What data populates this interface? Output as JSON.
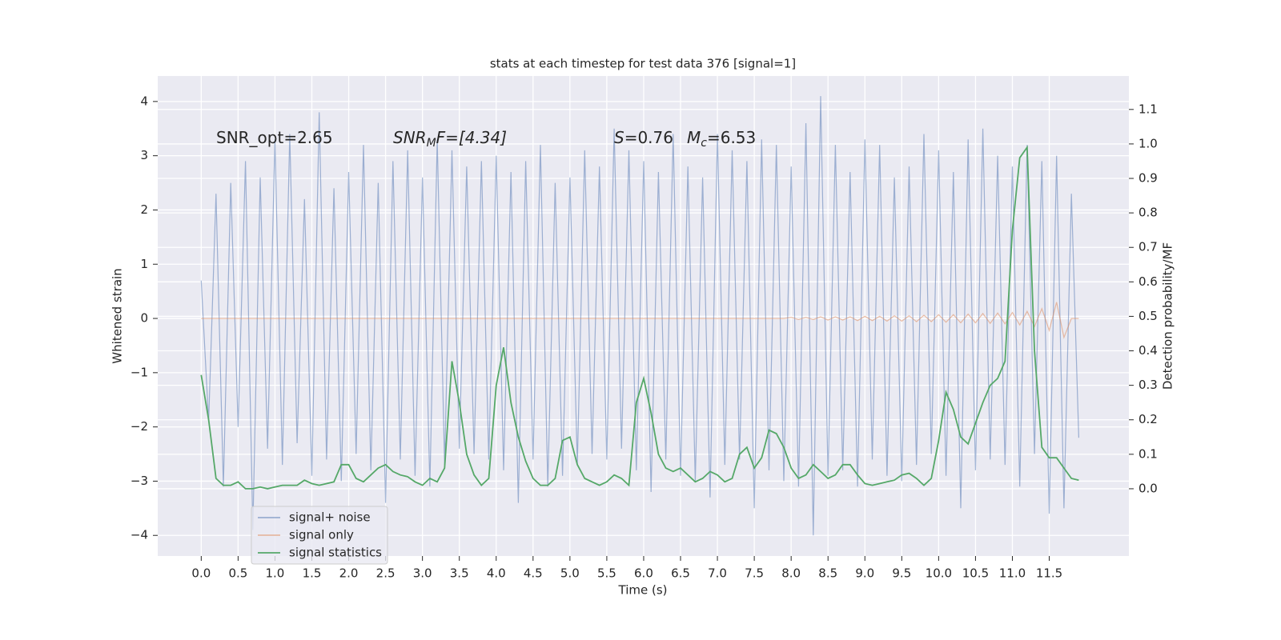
{
  "chart_data": {
    "type": "line",
    "title": "stats at each timestep for test data 376 [signal=1]",
    "xlabel": "Time (s)",
    "ylabel": "Whitened strain",
    "y2label": "Detection probability/MF",
    "annotations": [
      [
        "SNR_opt=2.65"
      ],
      [
        "SNR",
        "M",
        "F=[4.34]"
      ],
      [
        "S",
        "=0.76"
      ],
      [
        "M",
        "c",
        "=6.53"
      ]
    ],
    "x": [
      0,
      0.1,
      0.2,
      0.3,
      0.4,
      0.5,
      0.6,
      0.7,
      0.8,
      0.9,
      1,
      1.1,
      1.2,
      1.3,
      1.4,
      1.5,
      1.6,
      1.7,
      1.8,
      1.9,
      2,
      2.1,
      2.2,
      2.3,
      2.4,
      2.5,
      2.6,
      2.7,
      2.8,
      2.9,
      3,
      3.1,
      3.2,
      3.3,
      3.4,
      3.5,
      3.6,
      3.7,
      3.8,
      3.9,
      4,
      4.1,
      4.2,
      4.3,
      4.4,
      4.5,
      4.6,
      4.7,
      4.8,
      4.9,
      5,
      5.1,
      5.2,
      5.3,
      5.4,
      5.5,
      5.6,
      5.7,
      5.8,
      5.9,
      6,
      6.1,
      6.2,
      6.3,
      6.4,
      6.5,
      6.6,
      6.7,
      6.8,
      6.9,
      7,
      7.1,
      7.2,
      7.3,
      7.4,
      7.5,
      7.6,
      7.7,
      7.8,
      7.9,
      8,
      8.1,
      8.2,
      8.3,
      8.4,
      8.5,
      8.6,
      8.7,
      8.8,
      8.9,
      9,
      9.1,
      9.2,
      9.3,
      9.4,
      9.5,
      9.6,
      9.7,
      9.8,
      9.9,
      10,
      10.1,
      10.2,
      10.3,
      10.4,
      10.5,
      10.6,
      10.7,
      10.8,
      10.9,
      11,
      11.1,
      11.2,
      11.3,
      11.4,
      11.5,
      11.6,
      11.7,
      11.8,
      11.9
    ],
    "series": [
      {
        "name": "signal+ noise",
        "color": "#4c72b0",
        "axis": "y",
        "values": [
          0.7,
          -1.9,
          2.3,
          -3.1,
          2.5,
          -2.0,
          2.9,
          -3.9,
          2.6,
          -2.4,
          3.3,
          -2.7,
          3.4,
          -2.3,
          2.2,
          -2.9,
          3.8,
          -2.6,
          2.4,
          -3.0,
          2.7,
          -2.5,
          3.2,
          -2.8,
          2.5,
          -3.4,
          2.9,
          -2.6,
          3.1,
          -2.9,
          2.6,
          -3.1,
          3.3,
          -2.7,
          3.1,
          -2.4,
          2.8,
          -2.5,
          2.9,
          -2.6,
          3.0,
          -2.8,
          2.7,
          -3.4,
          2.9,
          -2.6,
          3.2,
          -3.1,
          2.5,
          -2.9,
          2.6,
          -2.7,
          3.1,
          -2.5,
          2.8,
          -2.6,
          3.5,
          -2.4,
          3.1,
          -2.8,
          2.9,
          -3.2,
          2.7,
          -2.6,
          3.4,
          -2.9,
          2.8,
          -3.0,
          2.6,
          -3.3,
          3.4,
          -2.7,
          3.1,
          -2.6,
          2.9,
          -3.5,
          3.3,
          -2.8,
          3.2,
          -3.0,
          2.8,
          -3.1,
          3.6,
          -4.0,
          4.1,
          -2.9,
          3.2,
          -2.8,
          2.7,
          -3.1,
          3.3,
          -2.6,
          3.2,
          -2.9,
          2.6,
          -3.0,
          2.8,
          -2.7,
          3.4,
          -2.5,
          3.1,
          -2.9,
          2.7,
          -3.5,
          3.3,
          -2.8,
          3.5,
          -2.6,
          3.0,
          -2.7,
          2.8,
          -3.1,
          3.2,
          -2.5,
          2.9,
          -3.6,
          3.0,
          -3.5,
          2.3,
          -2.2
        ]
      },
      {
        "name": "signal only",
        "color": "#dd8452",
        "axis": "y",
        "values": [
          0,
          0,
          0,
          0,
          0,
          0,
          0,
          0,
          0,
          0,
          0,
          0,
          0,
          0,
          0,
          0,
          0,
          0,
          0,
          0,
          0,
          0,
          0,
          0,
          0,
          0,
          0,
          0,
          0,
          0,
          0,
          0,
          0,
          0,
          0,
          0,
          0,
          0,
          0,
          0,
          0,
          0,
          0,
          0,
          0,
          0,
          0,
          0,
          0,
          0,
          0,
          0,
          0,
          0,
          0,
          0,
          0,
          0,
          0,
          0,
          0,
          0,
          0,
          0,
          0,
          0,
          0,
          0,
          0,
          0,
          0,
          0,
          0,
          0,
          0,
          0,
          0,
          0,
          0,
          0,
          0.02,
          -0.02,
          0.02,
          -0.02,
          0.03,
          -0.03,
          0.03,
          -0.03,
          0.03,
          -0.04,
          0.04,
          -0.04,
          0.04,
          -0.05,
          0.05,
          -0.05,
          0.05,
          -0.06,
          0.06,
          -0.06,
          0.07,
          -0.07,
          0.07,
          -0.08,
          0.08,
          -0.08,
          0.09,
          -0.09,
          0.1,
          -0.1,
          0.11,
          -0.12,
          0.13,
          -0.15,
          0.18,
          -0.22,
          0.3,
          -0.35,
          0,
          0
        ]
      },
      {
        "name": "signal statistics",
        "color": "#55a868",
        "axis": "y2",
        "values": [
          0.33,
          0.2,
          0.03,
          0.01,
          0.01,
          0.02,
          0,
          0,
          0.005,
          0,
          0.005,
          0.01,
          0.01,
          0.01,
          0.025,
          0.015,
          0.01,
          0.015,
          0.02,
          0.07,
          0.07,
          0.03,
          0.02,
          0.04,
          0.06,
          0.07,
          0.05,
          0.04,
          0.035,
          0.02,
          0.01,
          0.03,
          0.02,
          0.06,
          0.37,
          0.25,
          0.1,
          0.04,
          0.01,
          0.03,
          0.3,
          0.41,
          0.25,
          0.15,
          0.08,
          0.03,
          0.01,
          0.01,
          0.03,
          0.14,
          0.15,
          0.07,
          0.03,
          0.02,
          0.01,
          0.02,
          0.04,
          0.03,
          0.01,
          0.25,
          0.32,
          0.22,
          0.1,
          0.06,
          0.05,
          0.06,
          0.04,
          0.02,
          0.03,
          0.05,
          0.04,
          0.02,
          0.03,
          0.1,
          0.12,
          0.06,
          0.09,
          0.17,
          0.16,
          0.12,
          0.06,
          0.03,
          0.04,
          0.07,
          0.05,
          0.03,
          0.04,
          0.07,
          0.07,
          0.04,
          0.015,
          0.01,
          0.015,
          0.02,
          0.025,
          0.04,
          0.045,
          0.03,
          0.01,
          0.03,
          0.14,
          0.28,
          0.23,
          0.15,
          0.13,
          0.19,
          0.25,
          0.3,
          0.32,
          0.37,
          0.75,
          0.96,
          0.99,
          0.4,
          0.12,
          0.09,
          0.09,
          0.06,
          0.03,
          0.025
        ]
      }
    ],
    "xlim": [
      -0.59,
      12.58
    ],
    "xticks": [
      {
        "value": 0,
        "label": "0.0"
      },
      {
        "value": 0.5,
        "label": "0.5"
      },
      {
        "value": 1,
        "label": "1.0"
      },
      {
        "value": 1.5,
        "label": "1.5"
      },
      {
        "value": 2,
        "label": "2.0"
      },
      {
        "value": 2.5,
        "label": "2.5"
      },
      {
        "value": 3,
        "label": "3.0"
      },
      {
        "value": 3.5,
        "label": "3.5"
      },
      {
        "value": 4,
        "label": "4.0"
      },
      {
        "value": 4.5,
        "label": "4.5"
      },
      {
        "value": 5,
        "label": "5.0"
      },
      {
        "value": 5.5,
        "label": "5.5"
      },
      {
        "value": 6,
        "label": "6.0"
      },
      {
        "value": 6.5,
        "label": "6.5"
      },
      {
        "value": 7,
        "label": "7.0"
      },
      {
        "value": 7.5,
        "label": "7.5"
      },
      {
        "value": 8,
        "label": "8.0"
      },
      {
        "value": 8.5,
        "label": "8.5"
      },
      {
        "value": 9,
        "label": "9.0"
      },
      {
        "value": 9.5,
        "label": "9.5"
      },
      {
        "value": 10,
        "label": "10.0"
      },
      {
        "value": 10.5,
        "label": "10.5"
      },
      {
        "value": 11,
        "label": "11.0"
      },
      {
        "value": 11.5,
        "label": "11.5"
      }
    ],
    "ylim": [
      -4.38,
      4.47
    ],
    "yticks": [
      {
        "value": -4,
        "label": "−4"
      },
      {
        "value": -3,
        "label": "−3"
      },
      {
        "value": -2,
        "label": "−2"
      },
      {
        "value": -1,
        "label": "−1"
      },
      0,
      1,
      2,
      3,
      4
    ],
    "y2lim": [
      -0.195,
      1.197
    ],
    "y2ticks": [
      {
        "value": 0,
        "label": "0.0"
      },
      0.1,
      0.2,
      0.3,
      0.4,
      0.5,
      0.6,
      0.7,
      0.8,
      0.9,
      {
        "value": 1,
        "label": "1.0"
      },
      1.1
    ],
    "grid": true,
    "legend": "lower left",
    "background": "#eaeaf2"
  }
}
